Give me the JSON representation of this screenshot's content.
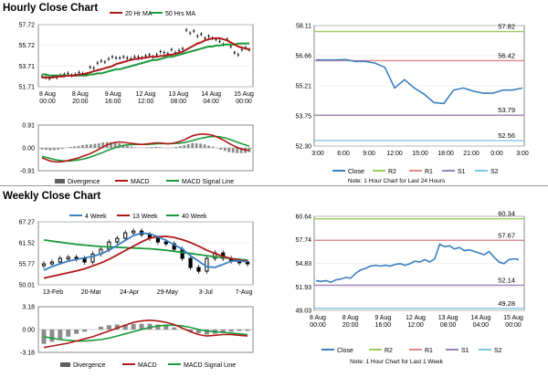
{
  "sections": {
    "hourly_title": "Hourly Close Chart",
    "weekly_title": "Weekly Close Chart"
  },
  "colors": {
    "ma20": "#b01818",
    "ma50": "#1a9a3a",
    "macd": "#b01818",
    "signal": "#1a9a3a",
    "close": "#3a7fc1",
    "r2": "#9acd5a",
    "r1": "#e08a8a",
    "s1": "#a080b0",
    "s2": "#7fc8e0",
    "bars": "#707070",
    "candle": "#000000",
    "wk4": "#3a7fc1",
    "wk13": "#b01818",
    "wk40": "#1a9a3a"
  },
  "chart_data": [
    {
      "id": "hourly_price",
      "type": "line",
      "legend": [
        "20 Hr MA",
        "50 Hrs MA"
      ],
      "y_ticks": [
        "57.72",
        "55.72",
        "53.71",
        "51.71"
      ],
      "ylim": [
        51.71,
        57.72
      ],
      "x_ticks": [
        [
          "8 Aug",
          "00:00"
        ],
        [
          "8 Aug",
          "20:00"
        ],
        [
          "9 Aug",
          "16:00"
        ],
        [
          "12 Aug",
          "12:00"
        ],
        [
          "13 Aug",
          "08:00"
        ],
        [
          "14 Aug",
          "04:00"
        ],
        [
          "15 Aug",
          "00:00"
        ]
      ],
      "close": [
        52.7,
        52.6,
        52.5,
        52.7,
        52.6,
        52.8,
        52.9,
        53.0,
        52.8,
        52.9,
        53.1,
        53.0,
        52.9,
        53.6,
        53.5,
        54.0,
        54.2,
        54.1,
        54.4,
        54.6,
        54.5,
        54.5,
        54.6,
        54.5,
        54.4,
        54.6,
        54.6,
        54.5,
        54.7,
        54.8,
        54.6,
        54.8,
        55.1,
        55.0,
        54.9,
        55.3,
        55.0,
        55.2,
        55.4,
        57.2,
        56.9,
        57.1,
        56.6,
        56.8,
        56.4,
        56.6,
        56.4,
        56.3,
        56.1,
        55.8,
        56.3,
        55.6,
        55.0,
        54.8,
        55.3,
        55.5,
        55.3
      ],
      "ma20": [
        52.6,
        52.6,
        52.6,
        52.6,
        52.7,
        52.7,
        52.7,
        52.8,
        52.8,
        52.8,
        52.9,
        52.9,
        53.0,
        53.1,
        53.2,
        53.3,
        53.4,
        53.5,
        53.6,
        53.7,
        53.9,
        54.0,
        54.1,
        54.2,
        54.3,
        54.4,
        54.4,
        54.5,
        54.5,
        54.6,
        54.6,
        54.6,
        54.7,
        54.7,
        54.8,
        54.8,
        54.9,
        55.0,
        55.1,
        55.3,
        55.5,
        55.7,
        55.9,
        56.0,
        56.2,
        56.3,
        56.4,
        56.4,
        56.4,
        56.3,
        56.2,
        56.0,
        55.8,
        55.6,
        55.5,
        55.4,
        55.3
      ],
      "ma50": [
        52.9,
        52.9,
        52.8,
        52.8,
        52.8,
        52.8,
        52.8,
        52.8,
        52.8,
        52.8,
        52.8,
        52.8,
        52.8,
        52.9,
        52.9,
        53.0,
        53.0,
        53.1,
        53.2,
        53.3,
        53.4,
        53.4,
        53.5,
        53.6,
        53.7,
        53.8,
        53.9,
        54.0,
        54.1,
        54.2,
        54.3,
        54.3,
        54.4,
        54.5,
        54.6,
        54.6,
        54.7,
        54.8,
        54.9,
        55.0,
        55.1,
        55.2,
        55.3,
        55.4,
        55.5,
        55.6,
        55.6,
        55.7,
        55.7,
        55.8,
        55.8,
        55.8,
        55.8,
        55.9,
        55.9,
        55.9,
        55.9
      ]
    },
    {
      "id": "hourly_macd",
      "type": "line",
      "y_ticks": [
        "0.91",
        "0.00",
        "-0.91"
      ],
      "ylim": [
        -0.91,
        0.91
      ],
      "legend": [
        "Divergence",
        "MACD",
        "MACD Signal Line"
      ],
      "macd": [
        -0.4,
        -0.46,
        -0.52,
        -0.55,
        -0.56,
        -0.55,
        -0.52,
        -0.48,
        -0.44,
        -0.4,
        -0.34,
        -0.28,
        -0.22,
        -0.14,
        -0.06,
        0.04,
        0.12,
        0.18,
        0.22,
        0.24,
        0.22,
        0.2,
        0.18,
        0.16,
        0.14,
        0.14,
        0.16,
        0.18,
        0.2,
        0.2,
        0.18,
        0.16,
        0.18,
        0.22,
        0.26,
        0.32,
        0.4,
        0.48,
        0.52,
        0.55,
        0.55,
        0.53,
        0.5,
        0.44,
        0.36,
        0.28,
        0.18,
        0.1,
        0.02,
        -0.04,
        -0.08,
        -0.1
      ],
      "signal": [
        -0.34,
        -0.38,
        -0.42,
        -0.46,
        -0.49,
        -0.51,
        -0.52,
        -0.52,
        -0.5,
        -0.48,
        -0.45,
        -0.41,
        -0.36,
        -0.3,
        -0.24,
        -0.18,
        -0.11,
        -0.05,
        0.01,
        0.06,
        0.09,
        0.12,
        0.13,
        0.14,
        0.14,
        0.14,
        0.14,
        0.15,
        0.16,
        0.17,
        0.17,
        0.17,
        0.17,
        0.18,
        0.19,
        0.21,
        0.25,
        0.29,
        0.34,
        0.38,
        0.41,
        0.44,
        0.45,
        0.45,
        0.43,
        0.4,
        0.35,
        0.29,
        0.23,
        0.17,
        0.12,
        0.07
      ],
      "divergence": [
        -0.06,
        -0.08,
        -0.1,
        -0.09,
        -0.07,
        -0.04,
        0.0,
        0.04,
        0.06,
        0.08,
        0.11,
        0.13,
        0.14,
        0.16,
        0.18,
        0.22,
        0.23,
        0.23,
        0.21,
        0.18,
        0.13,
        0.08,
        0.05,
        0.02,
        0.0,
        0.0,
        0.02,
        0.03,
        0.04,
        0.03,
        0.01,
        -0.01,
        0.01,
        0.04,
        0.07,
        0.11,
        0.15,
        0.19,
        0.18,
        0.17,
        0.14,
        0.09,
        0.05,
        -0.01,
        -0.07,
        -0.12,
        -0.17,
        -0.19,
        -0.21,
        -0.21,
        -0.2,
        -0.17
      ]
    },
    {
      "id": "hourly_pivot",
      "type": "line",
      "y_ticks": [
        "58.11",
        "56.66",
        "55.21",
        "53.75",
        "52.30"
      ],
      "ylim": [
        52.3,
        58.11
      ],
      "x_ticks": [
        "3:00",
        "6:00",
        "9:00",
        "12:00",
        "15:00",
        "18:00",
        "21:00",
        "0:00",
        "3:00"
      ],
      "levels": [
        {
          "name": "R2",
          "value": 57.82
        },
        {
          "name": "R1",
          "value": 56.42
        },
        {
          "name": "S1",
          "value": 53.79
        },
        {
          "name": "S2",
          "value": 52.56
        }
      ],
      "level_labels": [
        "57.82",
        "56.42",
        "53.79",
        "52.56"
      ],
      "close": [
        56.45,
        56.45,
        56.45,
        56.47,
        56.38,
        56.38,
        56.3,
        56.1,
        55.1,
        55.5,
        55.1,
        54.8,
        54.4,
        54.35,
        55.0,
        55.1,
        54.95,
        54.85,
        54.85,
        55.0,
        55.0,
        55.1
      ],
      "legend": [
        "Close",
        "R2",
        "R1",
        "S1",
        "S2"
      ],
      "note": "Note: 1 Hour Chart for Last 24 Hours"
    },
    {
      "id": "weekly_price",
      "type": "line",
      "legend": [
        "4 Week",
        "13 Week",
        "40 Week"
      ],
      "y_ticks": [
        "67.27",
        "61.52",
        "55.77",
        "50.01"
      ],
      "ylim": [
        50.01,
        67.27
      ],
      "x_ticks": [
        "13-Feb",
        "20-Mar",
        "24-Apr",
        "29-May",
        "3-Jul",
        "7-Aug"
      ],
      "close": [
        55.5,
        56.0,
        57.0,
        57.3,
        57.0,
        56.0,
        58.2,
        59.5,
        61.5,
        62.5,
        64.0,
        64.5,
        63.5,
        62.5,
        61.5,
        61.0,
        59.5,
        57.0,
        54.5,
        53.5,
        57.0,
        58.5,
        57.0,
        56.3,
        56.0,
        55.6
      ],
      "wk4": [
        54.0,
        55.0,
        55.8,
        56.5,
        57.0,
        57.4,
        57.8,
        58.5,
        59.5,
        60.8,
        62.2,
        63.5,
        64.2,
        64.0,
        63.2,
        62.2,
        61.0,
        59.8,
        58.0,
        56.5,
        55.0,
        54.8,
        55.6,
        56.5,
        56.6,
        56.3
      ],
      "wk13": [
        51.8,
        52.3,
        52.8,
        53.3,
        53.8,
        54.4,
        55.2,
        56.0,
        57.0,
        58.2,
        59.4,
        60.6,
        61.8,
        62.8,
        63.2,
        63.3,
        63.0,
        62.4,
        61.6,
        60.6,
        59.5,
        58.6,
        57.8,
        57.2,
        56.8,
        56.5
      ],
      "wk40": [
        62.3,
        62.0,
        61.7,
        61.4,
        61.1,
        60.9,
        60.7,
        60.5,
        60.4,
        60.3,
        60.2,
        60.1,
        60.0,
        59.9,
        59.7,
        59.5,
        59.2,
        58.9,
        58.6,
        58.3,
        58.0,
        57.7,
        57.5,
        57.2,
        57.0,
        56.8
      ]
    },
    {
      "id": "weekly_macd",
      "type": "line",
      "y_ticks": [
        "3.18",
        "0.00",
        "-3.18"
      ],
      "ylim": [
        -3.18,
        3.18
      ],
      "legend": [
        "Divergence",
        "MACD",
        "MACD Signal Line"
      ],
      "macd": [
        -2.5,
        -2.3,
        -2.1,
        -1.9,
        -1.6,
        -1.3,
        -1.0,
        -0.6,
        -0.2,
        0.2,
        0.6,
        1.0,
        1.2,
        1.3,
        1.2,
        1.0,
        0.7,
        0.2,
        -0.3,
        -0.7,
        -0.9,
        -0.8,
        -0.7,
        -0.7,
        -0.8,
        -0.9
      ],
      "signal": [
        -1.0,
        -1.2,
        -1.4,
        -1.5,
        -1.6,
        -1.6,
        -1.5,
        -1.4,
        -1.2,
        -0.9,
        -0.6,
        -0.3,
        0.0,
        0.3,
        0.5,
        0.6,
        0.6,
        0.5,
        0.3,
        0.0,
        -0.2,
        -0.3,
        -0.4,
        -0.5,
        -0.6,
        -0.7
      ],
      "divergence": [
        -2.0,
        -1.7,
        -1.4,
        -1.0,
        -0.6,
        -0.3,
        0.0,
        0.4,
        0.6,
        0.7,
        0.7,
        0.8,
        0.8,
        0.8,
        0.7,
        0.5,
        0.3,
        0.0,
        -0.3,
        -0.5,
        -0.7,
        -0.6,
        -0.4,
        -0.3,
        -0.2,
        -0.2
      ]
    },
    {
      "id": "weekly_pivot",
      "type": "line",
      "y_ticks": [
        "60.64",
        "57.74",
        "54.83",
        "51.93",
        "49.03"
      ],
      "ylim": [
        49.03,
        60.64
      ],
      "x_ticks": [
        [
          "8 Aug",
          "00:00"
        ],
        [
          "8 Aug",
          "20:00"
        ],
        [
          "9 Aug",
          "16:00"
        ],
        [
          "12 Aug",
          "12:00"
        ],
        [
          "13 Aug",
          "08:00"
        ],
        [
          "14 Aug",
          "04:00"
        ],
        [
          "15 Aug",
          "00:00"
        ]
      ],
      "levels": [
        {
          "name": "R2",
          "value": 60.34
        },
        {
          "name": "R1",
          "value": 57.67
        },
        {
          "name": "S1",
          "value": 52.14
        },
        {
          "name": "S2",
          "value": 49.28
        }
      ],
      "level_labels": [
        "60.34",
        "57.67",
        "52.14",
        "49.28"
      ],
      "close": [
        52.7,
        52.6,
        52.7,
        52.5,
        52.8,
        52.9,
        53.1,
        53.0,
        53.6,
        54.0,
        54.2,
        54.5,
        54.6,
        54.5,
        54.6,
        54.5,
        54.7,
        54.8,
        54.6,
        54.8,
        55.1,
        55.0,
        55.3,
        55.0,
        55.4,
        57.2,
        56.9,
        57.0,
        56.6,
        56.8,
        56.4,
        56.5,
        56.3,
        56.1,
        55.9,
        56.3,
        55.6,
        55.0,
        54.8,
        55.3,
        55.4,
        55.3
      ],
      "legend": [
        "Close",
        "R2",
        "R1",
        "S1",
        "S2"
      ],
      "note": "Note: 1 Hour Chart for Last 1 Week"
    }
  ]
}
